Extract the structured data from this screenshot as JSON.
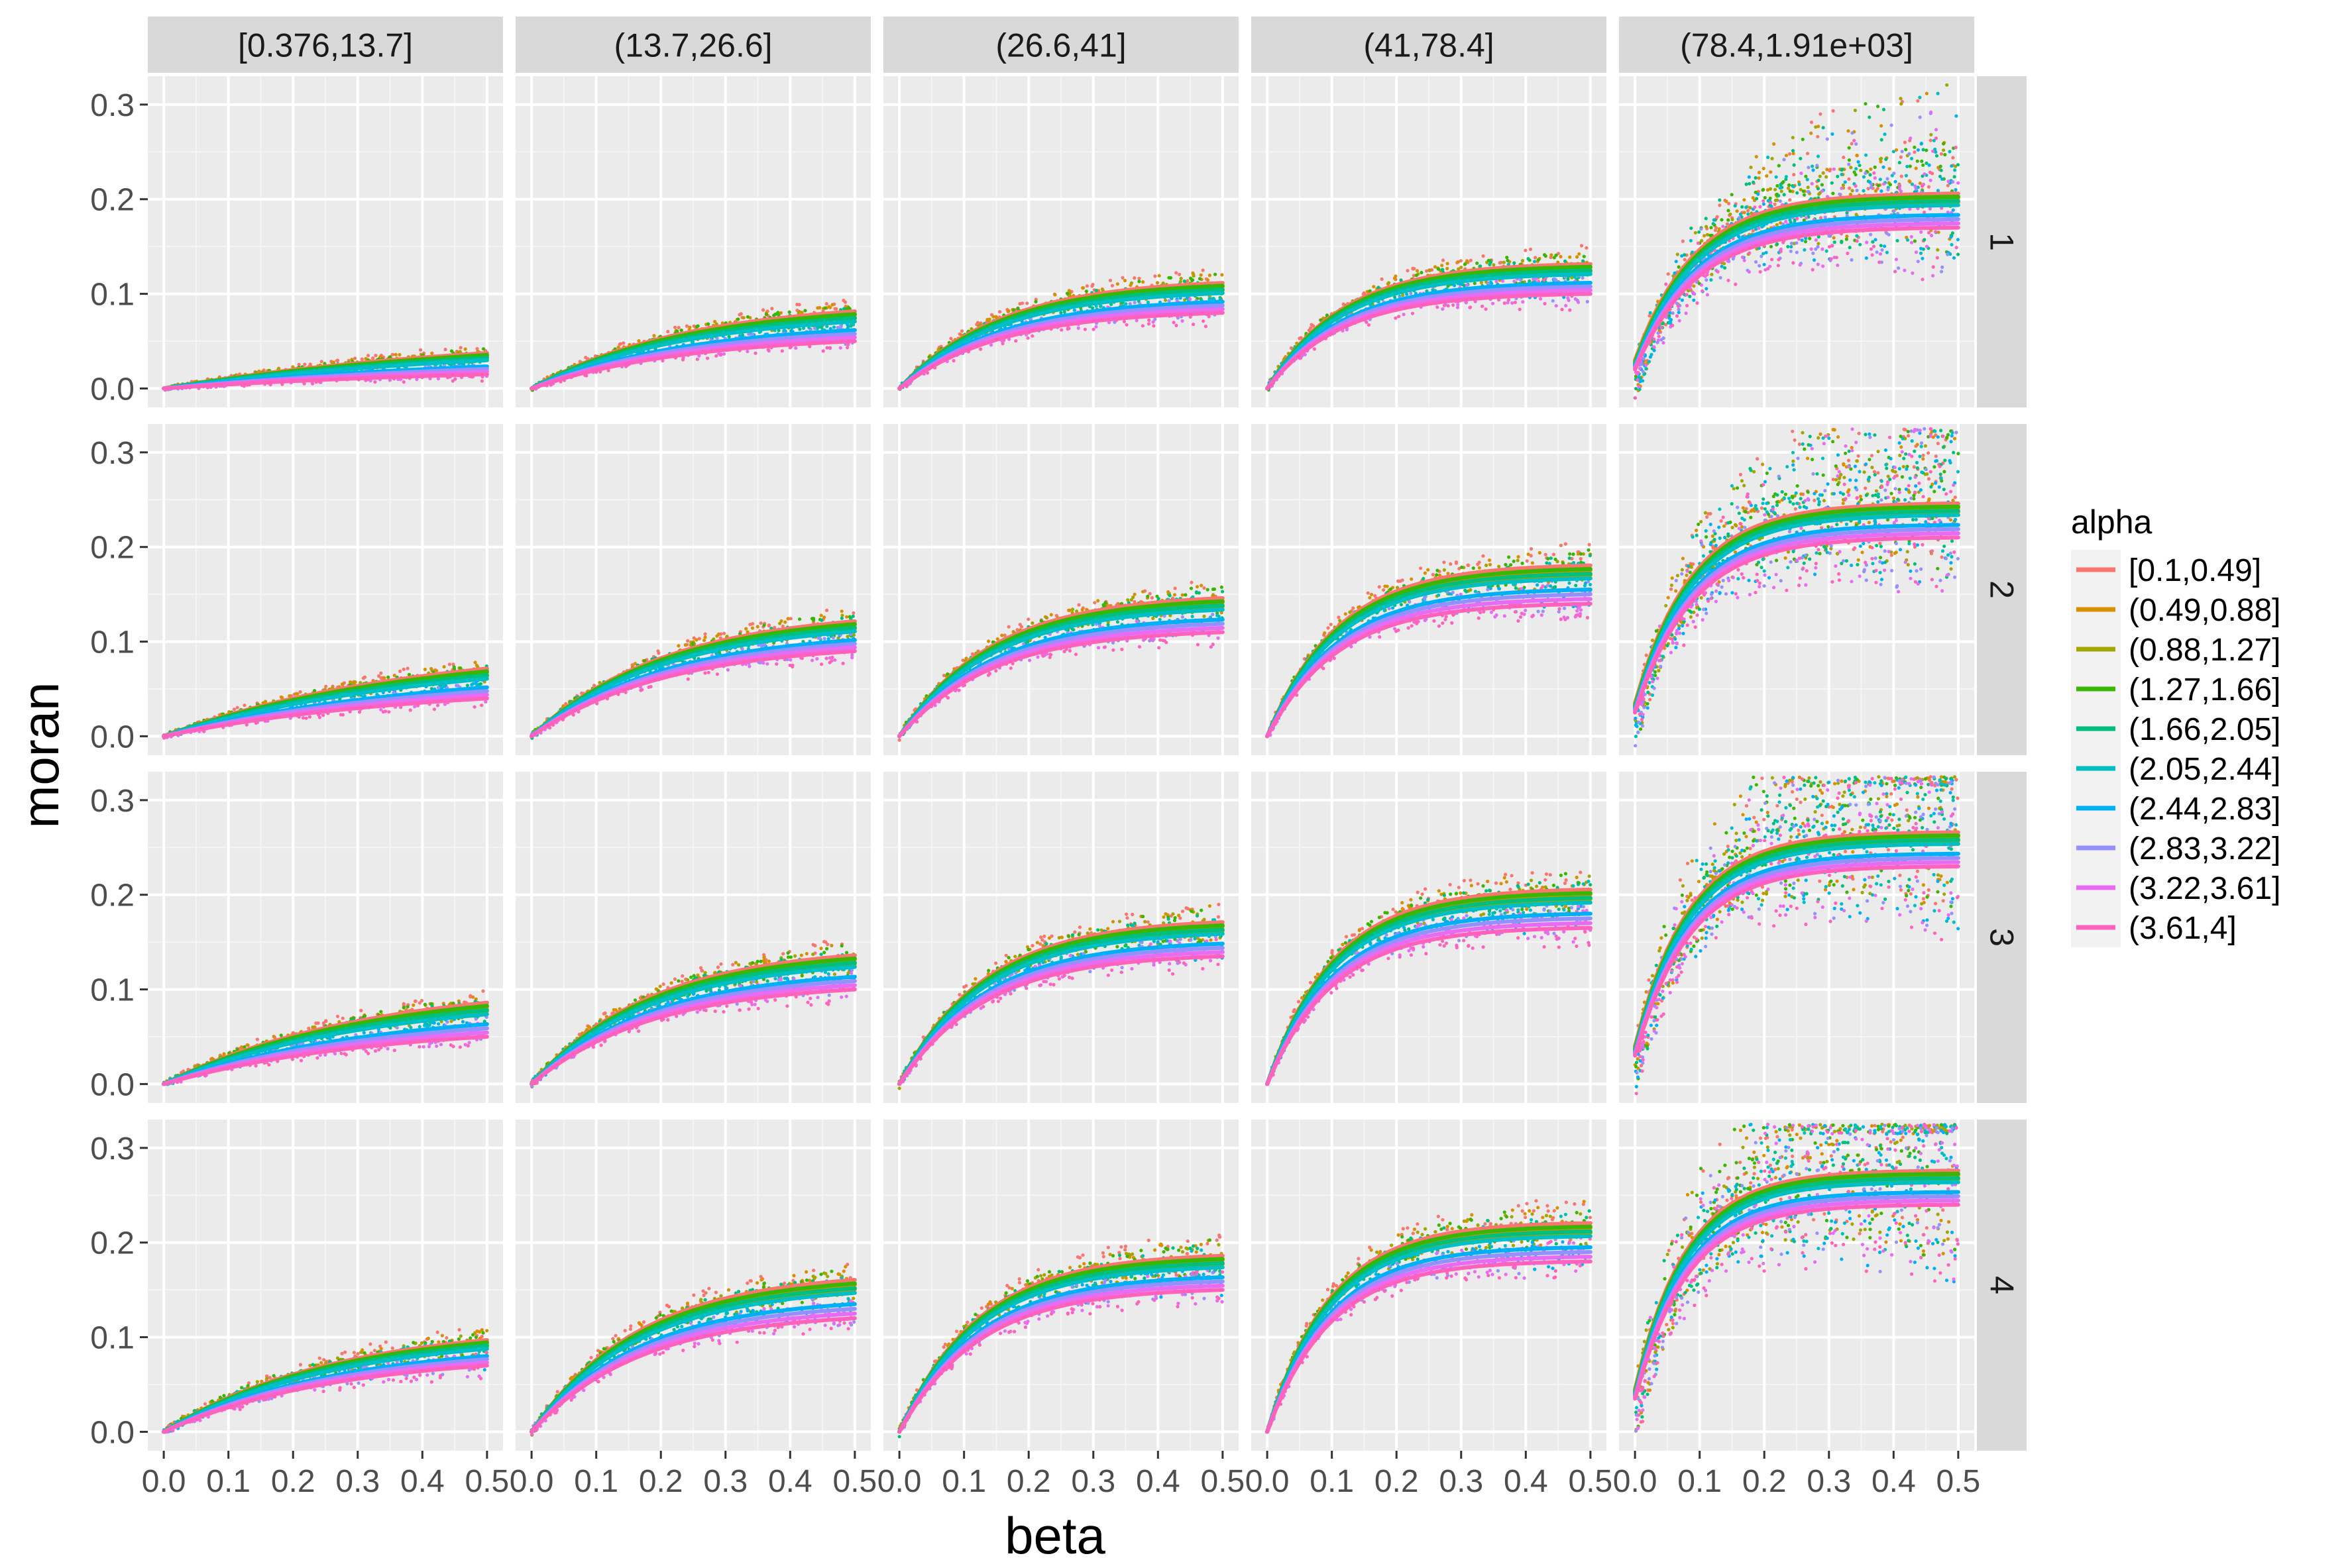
{
  "chart_data": {
    "type": "scatter",
    "subtype": "faceted scatter with smoothed trend lines",
    "xlabel": "beta",
    "ylabel": "moran",
    "x_range": [
      0.0,
      0.5
    ],
    "y_range": [
      -0.02,
      0.33
    ],
    "x_ticks": [
      0.0,
      0.1,
      0.2,
      0.3,
      0.4,
      0.5
    ],
    "x_tick_labels": [
      "0.0",
      "0.1",
      "0.2",
      "0.3",
      "0.4",
      "0.5"
    ],
    "y_ticks": [
      0.0,
      0.1,
      0.2,
      0.3
    ],
    "y_tick_labels": [
      "0.0",
      "0.1",
      "0.2",
      "0.3"
    ],
    "grid": true,
    "legend_position": "right",
    "legend_title": "alpha",
    "facet_columns": [
      "[0.376,13.7]",
      "(13.7,26.6]",
      "(26.6,41]",
      "(41,78.4]",
      "(78.4,1.91e+03]"
    ],
    "facet_rows": [
      "1",
      "2",
      "3",
      "4"
    ],
    "series": [
      {
        "name": "[0.1,0.49]",
        "color": "#F8766D"
      },
      {
        "name": "(0.49,0.88]",
        "color": "#D89000"
      },
      {
        "name": "(0.88,1.27]",
        "color": "#A3A500"
      },
      {
        "name": "(1.27,1.66]",
        "color": "#39B600"
      },
      {
        "name": "(1.66,2.05]",
        "color": "#00BF7D"
      },
      {
        "name": "(2.05,2.44]",
        "color": "#00BFC4"
      },
      {
        "name": "(2.44,2.83]",
        "color": "#00B0F6"
      },
      {
        "name": "(2.83,3.22]",
        "color": "#9590FF"
      },
      {
        "name": "(3.22,3.61]",
        "color": "#E76BF3"
      },
      {
        "name": "(3.61,4]",
        "color": "#FF62BC"
      }
    ],
    "trend_x": [
      0.0,
      0.05,
      0.1,
      0.15,
      0.2,
      0.25,
      0.3,
      0.35,
      0.4,
      0.45,
      0.5
    ],
    "trend_end_values": {
      "description": "approximate moran value of trend lines at beta=0.5 for highest (green) and lowest (pink) alpha groups",
      "rows": [
        {
          "row": "1",
          "cols": [
            [
              0.04,
              0.015
            ],
            [
              0.085,
              0.05
            ],
            [
              0.115,
              0.08
            ],
            [
              0.135,
              0.1
            ],
            [
              0.21,
              0.17
            ]
          ]
        },
        {
          "row": "2",
          "cols": [
            [
              0.075,
              0.04
            ],
            [
              0.125,
              0.09
            ],
            [
              0.15,
              0.11
            ],
            [
              0.185,
              0.14
            ],
            [
              0.25,
              0.21
            ]
          ]
        },
        {
          "row": "3",
          "cols": [
            [
              0.09,
              0.05
            ],
            [
              0.14,
              0.1
            ],
            [
              0.175,
              0.135
            ],
            [
              0.21,
              0.165
            ],
            [
              0.27,
              0.23
            ]
          ]
        },
        {
          "row": "4",
          "cols": [
            [
              0.1,
              0.07
            ],
            [
              0.165,
              0.12
            ],
            [
              0.19,
              0.15
            ],
            [
              0.225,
              0.18
            ],
            [
              0.28,
              0.24
            ]
          ]
        }
      ]
    }
  }
}
